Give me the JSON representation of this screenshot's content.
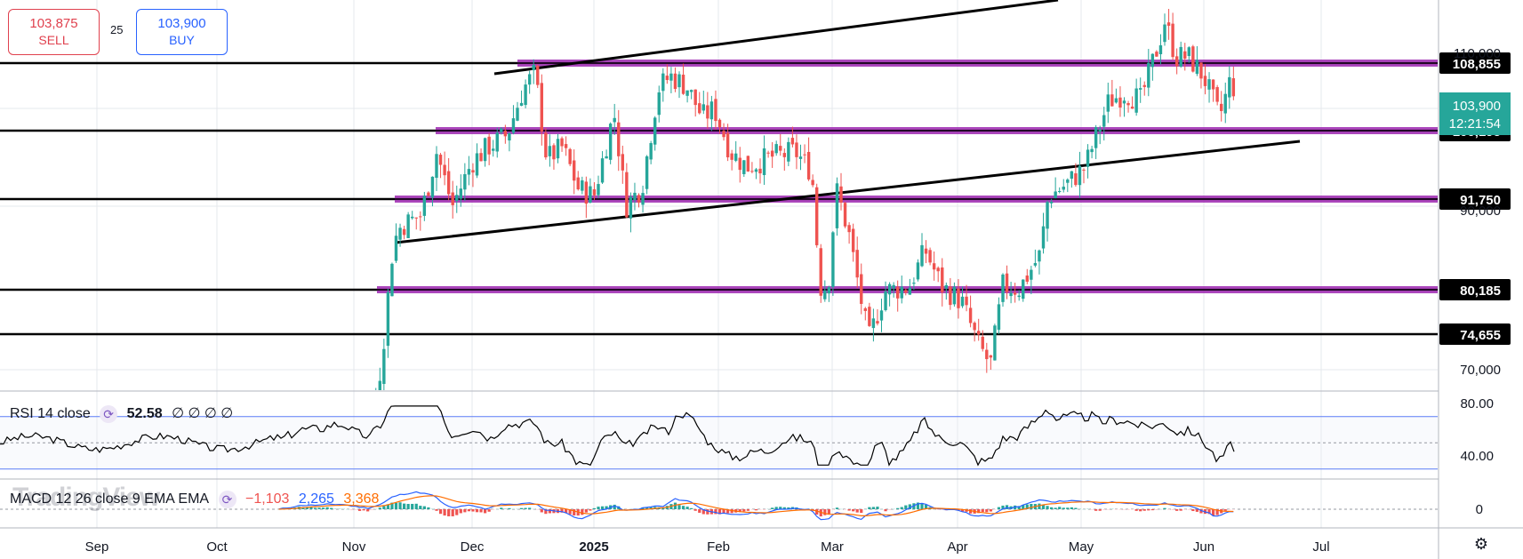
{
  "trade_panel": {
    "sell_price": "103,875",
    "sell_label": "SELL",
    "spread": "25",
    "buy_price": "103,900",
    "buy_label": "BUY"
  },
  "rsi_label": {
    "name": "RSI 14 close",
    "value": "52.58",
    "empties": "∅ ∅ ∅ ∅"
  },
  "macd_label": {
    "name": "MACD 12 26 close 9 EMA EMA",
    "macd": "−1,103",
    "signal": "2,265",
    "hist": "3,368"
  },
  "watermark": "TradingView",
  "colors": {
    "up": "#26a69a",
    "down": "#ef5350",
    "level_band": "#9c27b0",
    "rsi_line": "#000000",
    "macd": "#2962ff",
    "signal": "#ff6d00"
  },
  "chart_data": [
    {
      "type": "candlestick",
      "title": "",
      "ylim": [
        65000,
        117000
      ],
      "y_ticks": [
        "70,000",
        "90,000",
        "110,000"
      ],
      "x_ticks": [
        "Sep",
        "Oct",
        "Nov",
        "Dec",
        "2025",
        "Feb",
        "Mar",
        "Apr",
        "May",
        "Jun",
        "Jul"
      ],
      "last_price": {
        "value": "103,900",
        "countdown": "12:21:54"
      },
      "horizontal_levels": [
        {
          "label": "108,855",
          "value": 108855,
          "band": true
        },
        {
          "label": "100,195",
          "value": 100195,
          "band": true
        },
        {
          "label": "91,750",
          "value": 91750,
          "band": true
        },
        {
          "label": "80,185",
          "value": 80185,
          "band": true
        },
        {
          "label": "74,655",
          "value": 74655,
          "band": false
        }
      ],
      "trendlines": [
        {
          "from": [
            "Dec 13",
            107200
          ],
          "to": [
            "Apr 21",
            118500
          ]
        },
        {
          "from": [
            "Nov 10",
            85400
          ],
          "to": [
            "Jun 25",
            101200
          ]
        }
      ],
      "series_close_path": [
        [
          "Oct 15",
          62600
        ],
        [
          "Oct 20",
          67500
        ],
        [
          "Oct 25",
          68000
        ],
        [
          "Oct 30",
          72500
        ],
        [
          "Nov 5",
          69300
        ],
        [
          "Nov 8",
          76500
        ],
        [
          "Nov 11",
          88700
        ],
        [
          "Nov 13",
          90500
        ],
        [
          "Nov 18",
          91500
        ],
        [
          "Nov 22",
          98000
        ],
        [
          "Nov 26",
          92500
        ],
        [
          "Dec 1",
          97000
        ],
        [
          "Dec 5",
          98500
        ],
        [
          "Dec 10",
          99800
        ],
        [
          "Dec 14",
          104500
        ],
        [
          "Dec 17",
          106100
        ],
        [
          "Dec 20",
          97300
        ],
        [
          "Dec 24",
          98500
        ],
        [
          "Dec 28",
          94300
        ],
        [
          "Jan 1",
          93500
        ],
        [
          "Jan 6",
          102100
        ],
        [
          "Jan 9",
          92500
        ],
        [
          "Jan 13",
          94500
        ],
        [
          "Jan 17",
          104500
        ],
        [
          "Jan 20",
          105800
        ],
        [
          "Jan 24",
          104800
        ],
        [
          "Jan 28",
          101600
        ],
        [
          "Jan 31",
          102400
        ],
        [
          "Feb 4",
          98000
        ],
        [
          "Feb 8",
          96500
        ],
        [
          "Feb 14",
          97500
        ],
        [
          "Feb 20",
          98000
        ],
        [
          "Feb 24",
          96000
        ],
        [
          "Feb 26",
          84200
        ],
        [
          "Feb 28",
          84300
        ],
        [
          "Mar 2",
          94200
        ],
        [
          "Mar 5",
          89900
        ],
        [
          "Mar 10",
          78700
        ],
        [
          "Mar 14",
          83800
        ],
        [
          "Mar 20",
          84200
        ],
        [
          "Mar 24",
          88000
        ],
        [
          "Mar 28",
          84300
        ],
        [
          "Apr 2",
          82700
        ],
        [
          "Apr 6",
          78300
        ],
        [
          "Apr 9",
          76200
        ],
        [
          "Apr 12",
          84300
        ],
        [
          "Apr 16",
          84000
        ],
        [
          "Apr 21",
          87500
        ],
        [
          "Apr 23",
          93400
        ],
        [
          "Apr 28",
          94900
        ],
        [
          "May 2",
          96500
        ],
        [
          "May 8",
          103200
        ],
        [
          "May 12",
          104100
        ],
        [
          "May 16",
          103300
        ],
        [
          "May 21",
          109600
        ],
        [
          "May 22",
          111600
        ],
        [
          "May 25",
          107700
        ],
        [
          "May 28",
          107800
        ],
        [
          "Jun 1",
          105700
        ],
        [
          "Jun 5",
          101500
        ],
        [
          "Jun 8",
          105700
        ],
        [
          "Jun 9",
          103900
        ]
      ]
    },
    {
      "type": "line",
      "title": "RSI 14 close",
      "ylim": [
        20,
        90
      ],
      "y_ticks": [
        "80.00",
        "40.00"
      ],
      "bands": [
        70,
        30
      ],
      "middle": 50,
      "last_value": 52.58
    },
    {
      "type": "bar",
      "title": "MACD 12 26 close 9 EMA EMA",
      "y_ticks": [
        "0"
      ]
    }
  ]
}
